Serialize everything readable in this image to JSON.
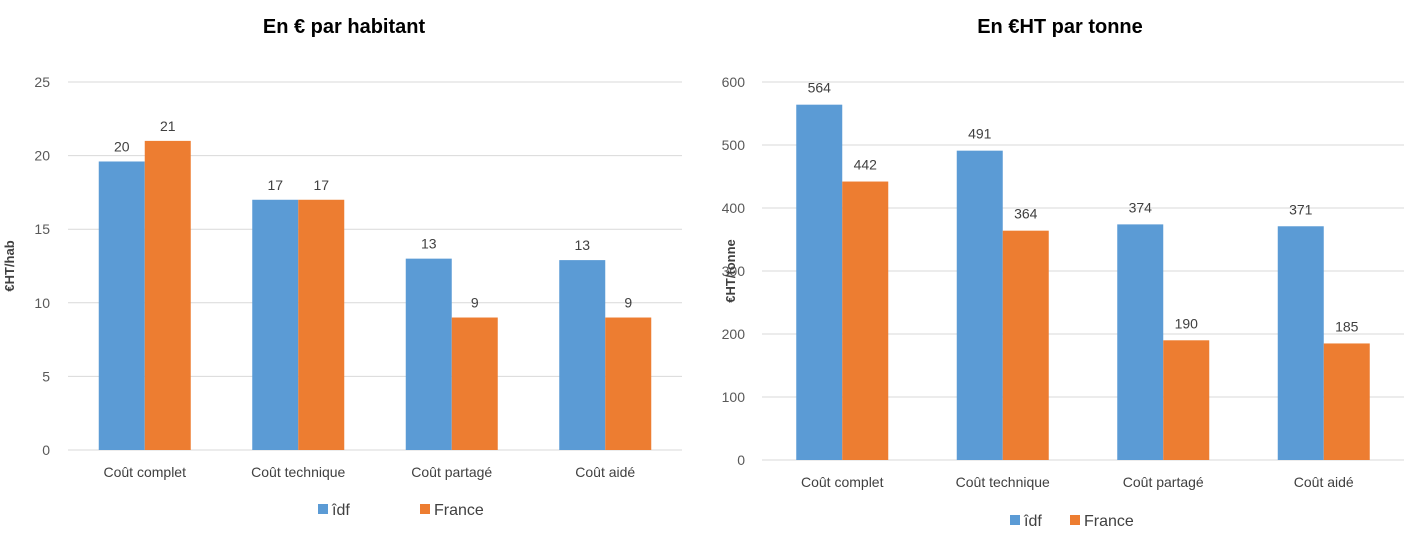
{
  "colors": {
    "idf": "#5B9BD5",
    "france": "#ED7D31",
    "grid": "#D9D9D9"
  },
  "chart_data": [
    {
      "type": "bar",
      "title": "En € par habitant",
      "xlabel": "",
      "ylabel": "€HT/hab",
      "ylim": [
        0,
        25
      ],
      "yticks": [
        0,
        5,
        10,
        15,
        20,
        25
      ],
      "grid": true,
      "legend_position": "bottom",
      "categories": [
        "Coût complet",
        "Coût technique",
        "Coût partagé",
        "Coût aidé"
      ],
      "series": [
        {
          "name": "îdf",
          "values": [
            19.6,
            17,
            13,
            12.9
          ],
          "labels": [
            "20",
            "17",
            "13",
            "13"
          ]
        },
        {
          "name": "France",
          "values": [
            21,
            17,
            9,
            9
          ],
          "labels": [
            "21",
            "17",
            "9",
            "9"
          ]
        }
      ]
    },
    {
      "type": "bar",
      "title": "En €HT par tonne",
      "xlabel": "",
      "ylabel": "€HT/tonne",
      "ylim": [
        0,
        600
      ],
      "yticks": [
        0,
        100,
        200,
        300,
        400,
        500,
        600
      ],
      "grid": true,
      "legend_position": "bottom",
      "categories": [
        "Coût complet",
        "Coût technique",
        "Coût partagé",
        "Coût aidé"
      ],
      "series": [
        {
          "name": "îdf",
          "values": [
            564,
            491,
            374,
            371
          ],
          "labels": [
            "564",
            "491",
            "374",
            "371"
          ]
        },
        {
          "name": "France",
          "values": [
            442,
            364,
            190,
            185
          ],
          "labels": [
            "442",
            "364",
            "190",
            "185"
          ]
        }
      ]
    }
  ]
}
